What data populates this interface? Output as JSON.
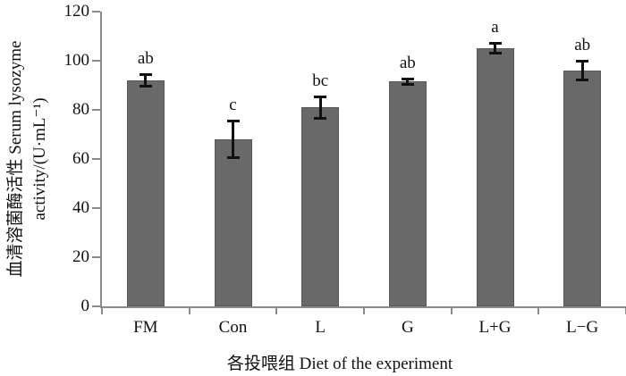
{
  "chart_data": {
    "type": "bar",
    "title": "",
    "categories": [
      "FM",
      "Con",
      "L",
      "G",
      "L+G",
      "L−G"
    ],
    "values": [
      92,
      68,
      81,
      91.5,
      105,
      96
    ],
    "errors": [
      3,
      8,
      5,
      1.5,
      2.5,
      4.5
    ],
    "sig_letters": [
      "ab",
      "c",
      "bc",
      "ab",
      "a",
      "ab"
    ],
    "xlabel": "各投喂组 Diet of the experiment",
    "ylabel": "血清溶菌酶活性 Serum lysozyme activity/(U·mL⁻¹)",
    "ylabel_lines": [
      "血清溶菌酶活性 Serum lysozyme",
      "activity/(U·mL⁻¹)"
    ],
    "ylim": [
      0,
      120
    ],
    "yticks": [
      0,
      20,
      40,
      60,
      80,
      100,
      120
    ],
    "grid": "off",
    "legend": "none",
    "colors": {
      "bar_fill": "#696969",
      "bar_border": "#58585a",
      "axis": "#8a8a8a",
      "error_bar": "#111111",
      "text": "#111111"
    }
  }
}
